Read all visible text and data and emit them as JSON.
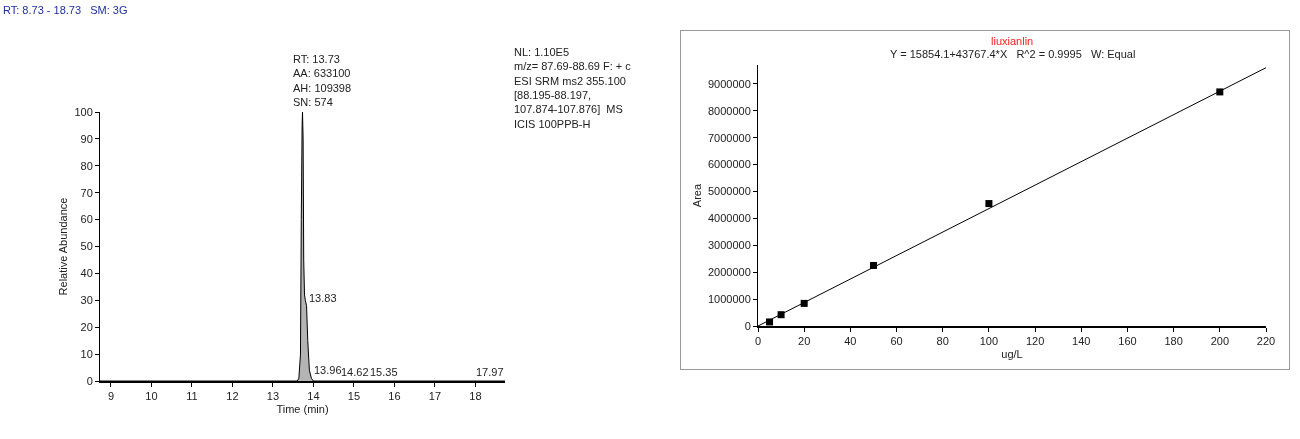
{
  "chart_data": [
    {
      "type": "area",
      "title": "RT: 8.73 - 18.73   SM: 3G",
      "xlabel": "Time (min)",
      "ylabel": "Relative Abundance",
      "x": [
        8.73,
        13.6,
        13.64,
        13.68,
        13.7,
        13.72,
        13.73,
        13.745,
        13.76,
        13.78,
        13.8,
        13.83,
        13.86,
        13.9,
        13.95,
        14.0,
        18.73
      ],
      "series": [
        {
          "color": "#b4b4b4",
          "values": [
            0,
            0,
            1,
            10,
            60,
            95,
            100,
            90,
            45,
            32,
            30,
            28,
            15,
            4,
            1,
            0,
            0
          ]
        }
      ],
      "xlim": [
        8.73,
        18.73
      ],
      "xticks": [
        9,
        10,
        11,
        12,
        13,
        14,
        15,
        16,
        17,
        18
      ],
      "ylim": [
        0,
        100
      ],
      "yticks": [
        0,
        10,
        20,
        30,
        40,
        50,
        60,
        70,
        80,
        90,
        100
      ],
      "grid": false,
      "legend": false,
      "annotations": [
        {
          "text": "RT: 13.73\nAA: 633100\nAH: 109398\nSN: 574",
          "x": 13.73,
          "y": 100
        },
        {
          "text": "13.83",
          "x": 13.83,
          "y": 28
        },
        {
          "text": "13.96",
          "x": 13.96,
          "y": 1
        },
        {
          "text": "14.62",
          "x": 14.62,
          "y": 0.5
        },
        {
          "text": "15.35",
          "x": 15.35,
          "y": 0.5
        },
        {
          "text": "17.97",
          "x": 17.97,
          "y": 0.5
        },
        "NL: 1.10E5\nm/z= 87.69-88.69 F: + c\nESI SRM ms2 355.100\n[88.195-88.197,\n107.874-107.876]  MS\nICIS 100PPB-H"
      ]
    },
    {
      "type": "scatter",
      "title": "liuxianlin",
      "subtitle": "Y = 15854.1+43767.4*X   R^2 = 0.9995   W: Equal",
      "xlabel": "ug/L",
      "ylabel": "Area",
      "series": [
        {
          "color": "#000000",
          "marker": "square",
          "x": [
            5,
            10,
            20,
            50,
            100,
            200
          ],
          "values": [
            150000,
            420000,
            840000,
            2250000,
            4550000,
            8700000
          ]
        },
        {
          "type": "line",
          "color": "#000000",
          "marker": "none",
          "x": [
            0,
            220
          ],
          "values": [
            0,
            9600000
          ]
        }
      ],
      "xlim": [
        0,
        220
      ],
      "xticks": [
        0,
        20,
        40,
        60,
        80,
        100,
        120,
        140,
        160,
        180,
        200,
        220
      ],
      "ylim": [
        0,
        9700000
      ],
      "yticks": [
        0,
        1000000,
        2000000,
        3000000,
        4000000,
        5000000,
        6000000,
        7000000,
        8000000,
        9000000
      ],
      "grid": false,
      "legend": false
    }
  ]
}
